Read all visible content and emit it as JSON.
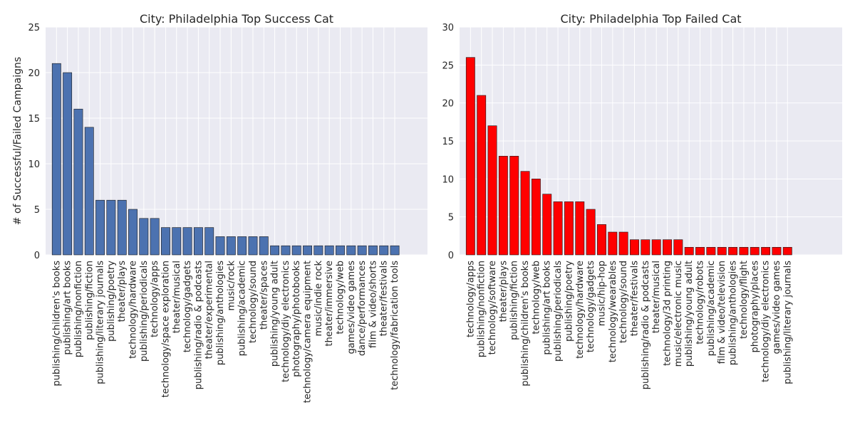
{
  "chart_data": [
    {
      "type": "bar",
      "title": "City: Philadelphia Top Success Cat",
      "ylabel": "# of Successful/Failed Campaigns",
      "xlabel": "",
      "ylim": [
        0,
        25
      ],
      "yticks": [
        0,
        5,
        10,
        15,
        20,
        25
      ],
      "grid": true,
      "bar_color": "#4c72b0",
      "categories": [
        "publishing/children's books",
        "publishing/art books",
        "publishing/nonfiction",
        "publishing/fiction",
        "publishing/literary journals",
        "publishing/poetry",
        "theater/plays",
        "technology/hardware",
        "publishing/periodicals",
        "technology/apps",
        "technology/space exploration",
        "theater/musical",
        "technology/gadgets",
        "publishing/radio & podcasts",
        "theater/experimental",
        "publishing/anthologies",
        "music/rock",
        "publishing/academic",
        "technology/sound",
        "theater/spaces",
        "publishing/young adult",
        "technology/diy electronics",
        "photography/photobooks",
        "technology/camera equipment",
        "music/indie rock",
        "theater/immersive",
        "technology/web",
        "games/video games",
        "dance/performances",
        "film & video/shorts",
        "theater/festivals",
        "technology/fabrication tools"
      ],
      "values": [
        21,
        20,
        16,
        14,
        6,
        6,
        6,
        5,
        4,
        4,
        3,
        3,
        3,
        3,
        3,
        2,
        2,
        2,
        2,
        2,
        1,
        1,
        1,
        1,
        1,
        1,
        1,
        1,
        1,
        1,
        1,
        1
      ]
    },
    {
      "type": "bar",
      "title": "City: Philadelphia Top Failed Cat",
      "ylabel": "",
      "xlabel": "",
      "ylim": [
        0,
        30
      ],
      "yticks": [
        0,
        5,
        10,
        15,
        20,
        25,
        30
      ],
      "grid": true,
      "bar_color": "#ff0000",
      "categories": [
        "technology/apps",
        "publishing/nonfiction",
        "technology/software",
        "theater/plays",
        "publishing/fiction",
        "publishing/children's books",
        "technology/web",
        "publishing/art books",
        "publishing/periodicals",
        "publishing/poetry",
        "technology/hardware",
        "technology/gadgets",
        "music/hip-hop",
        "technology/wearables",
        "technology/sound",
        "theater/festivals",
        "publishing/radio & podcasts",
        "theater/musical",
        "technology/3d printing",
        "music/electronic music",
        "publishing/young adult",
        "technology/robots",
        "publishing/academic",
        "film & video/television",
        "publishing/anthologies",
        "technology/flight",
        "photography/places",
        "technology/diy electronics",
        "games/video games",
        "publishing/literary journals"
      ],
      "values": [
        26,
        21,
        17,
        13,
        13,
        11,
        10,
        8,
        7,
        7,
        7,
        6,
        4,
        3,
        3,
        2,
        2,
        2,
        2,
        2,
        1,
        1,
        1,
        1,
        1,
        1,
        1,
        1,
        1,
        1
      ]
    }
  ]
}
